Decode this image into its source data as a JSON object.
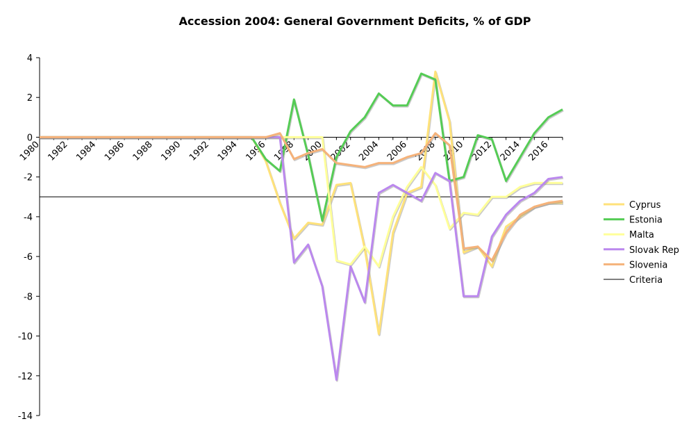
{
  "chart_data": {
    "type": "line",
    "title": "Accession 2004: General Government Deficits, % of GDP",
    "xlabel": "",
    "ylabel": "",
    "ylim": [
      -14,
      4
    ],
    "yticks": [
      4,
      2,
      0,
      -2,
      -4,
      -6,
      -8,
      -10,
      -12,
      -14
    ],
    "x_tick_labels": [
      "1980",
      "1982",
      "1984",
      "1986",
      "1988",
      "1990",
      "1992",
      "1994",
      "1996",
      "1998",
      "2000",
      "2002",
      "2004",
      "2006",
      "2008",
      "2010",
      "2012",
      "2014",
      "2016"
    ],
    "x": [
      1980,
      1981,
      1982,
      1983,
      1984,
      1985,
      1986,
      1987,
      1988,
      1989,
      1990,
      1991,
      1992,
      1993,
      1994,
      1995,
      1996,
      1997,
      1998,
      1999,
      2000,
      2001,
      2002,
      2003,
      2004,
      2005,
      2006,
      2007,
      2008,
      2009,
      2010,
      2011,
      2012,
      2013,
      2014,
      2015,
      2016,
      2017
    ],
    "legend_position": "right",
    "series": [
      {
        "name": "Cyprus",
        "color": "#ffe27a",
        "values": [
          0,
          0,
          0,
          0,
          0,
          0,
          0,
          0,
          0,
          0,
          0,
          0,
          0,
          0,
          0,
          0,
          -1.2,
          -3.3,
          -5.1,
          -4.3,
          -4.4,
          -2.4,
          -2.3,
          -5.6,
          -9.9,
          -4.8,
          -2.8,
          -2.5,
          3.3,
          0.8,
          -5.8,
          -5.5,
          -6.5,
          -4.5,
          -4.0,
          -3.5,
          -3.3,
          -3.3
        ]
      },
      {
        "name": "Estonia",
        "color": "#55cc55",
        "values": [
          0,
          0,
          0,
          0,
          0,
          0,
          0,
          0,
          0,
          0,
          0,
          0,
          0,
          0,
          0,
          0,
          -1.1,
          -1.7,
          1.9,
          -0.9,
          -4.2,
          -1.0,
          0.3,
          1.0,
          2.2,
          1.6,
          1.6,
          3.2,
          2.9,
          -2.2,
          -2.0,
          0.1,
          -0.1,
          -2.2,
          -1.0,
          0.2,
          1.0,
          1.4
        ]
      },
      {
        "name": "Malta",
        "color": "#ffff99",
        "values": [
          0,
          0,
          0,
          0,
          0,
          0,
          0,
          0,
          0,
          0,
          0,
          0,
          0,
          0,
          0,
          0,
          0,
          0,
          0,
          0,
          0,
          -6.2,
          -6.4,
          -5.5,
          -6.5,
          -4.0,
          -2.5,
          -1.5,
          -2.4,
          -4.6,
          -3.8,
          -3.9,
          -3.0,
          -3.0,
          -2.5,
          -2.3,
          -2.3,
          -2.3
        ]
      },
      {
        "name": "Slovak Rep",
        "color": "#bb88ee",
        "values": [
          0,
          0,
          0,
          0,
          0,
          0,
          0,
          0,
          0,
          0,
          0,
          0,
          0,
          0,
          0,
          0,
          0,
          0,
          -6.3,
          -5.4,
          -7.5,
          -12.2,
          -6.5,
          -8.3,
          -2.8,
          -2.4,
          -2.8,
          -3.2,
          -1.8,
          -2.2,
          -8.0,
          -8.0,
          -5.0,
          -3.9,
          -3.2,
          -2.8,
          -2.1,
          -2.0
        ]
      },
      {
        "name": "Slovenia",
        "color": "#f5b27a",
        "values": [
          0,
          0,
          0,
          0,
          0,
          0,
          0,
          0,
          0,
          0,
          0,
          0,
          0,
          0,
          0,
          0,
          0,
          0.2,
          -1.1,
          -0.8,
          -0.6,
          -1.3,
          -1.4,
          -1.5,
          -1.3,
          -1.3,
          -1.0,
          -0.8,
          0.2,
          -0.4,
          -5.6,
          -5.5,
          -6.2,
          -4.8,
          -3.9,
          -3.5,
          -3.3,
          -3.2
        ]
      }
    ],
    "criteria": {
      "name": "Criteria",
      "color": "#000000",
      "value": -3
    }
  }
}
